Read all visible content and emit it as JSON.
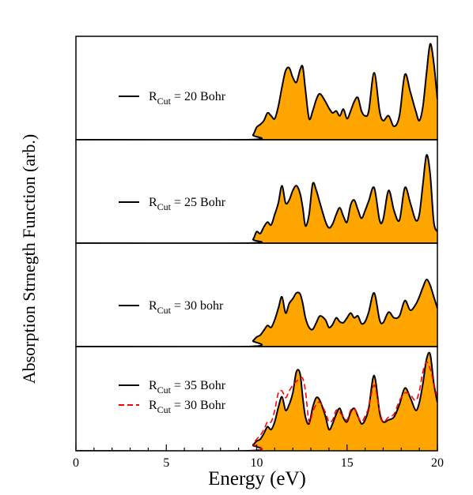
{
  "figure": {
    "ylabel": "Absorption Strnegth Function (arb.)",
    "xlabel": "Energy (eV)"
  },
  "colors": {
    "fill": "#FFA500",
    "curve": "#000000",
    "reference": "#FF0000",
    "frame": "#000000"
  },
  "chart_data": [
    {
      "type": "area",
      "panel": 1,
      "legend": [
        {
          "prefix": "R",
          "subscript": "Cut",
          "suffix": " = 20 Bohr",
          "style": "solid"
        }
      ],
      "xlim": [
        0,
        20
      ],
      "ylim": [
        0,
        1.08
      ],
      "series": [
        {
          "name": "RCut = 20 Bohr",
          "x": [
            0,
            9.5,
            9.8,
            10.0,
            10.2,
            10.4,
            10.6,
            10.8,
            11.0,
            11.2,
            11.4,
            11.6,
            11.8,
            12.0,
            12.2,
            12.4,
            12.55,
            12.7,
            12.9,
            13.1,
            13.3,
            13.5,
            13.8,
            14.0,
            14.2,
            14.4,
            14.6,
            14.8,
            15.0,
            15.2,
            15.4,
            15.6,
            15.8,
            16.0,
            16.2,
            16.5,
            16.8,
            17.0,
            17.3,
            17.6,
            17.9,
            18.2,
            18.5,
            18.8,
            19.0,
            19.2,
            19.4,
            19.6,
            19.8,
            20.0
          ],
          "y": [
            0,
            0,
            0.05,
            0.13,
            0.16,
            0.2,
            0.28,
            0.25,
            0.22,
            0.35,
            0.55,
            0.72,
            0.75,
            0.65,
            0.6,
            0.73,
            0.76,
            0.52,
            0.22,
            0.3,
            0.42,
            0.48,
            0.4,
            0.33,
            0.28,
            0.3,
            0.25,
            0.32,
            0.22,
            0.3,
            0.4,
            0.44,
            0.3,
            0.25,
            0.3,
            0.7,
            0.3,
            0.2,
            0.25,
            0.14,
            0.25,
            0.68,
            0.5,
            0.3,
            0.2,
            0.35,
            0.7,
            1.0,
            0.8,
            0.42
          ]
        }
      ]
    },
    {
      "type": "area",
      "panel": 2,
      "legend": [
        {
          "prefix": "R",
          "subscript": "Cut",
          "suffix": " = 25 Bohr",
          "style": "solid"
        }
      ],
      "xlim": [
        0,
        20
      ],
      "ylim": [
        0,
        1.08
      ],
      "series": [
        {
          "name": "RCut = 25 Bohr",
          "x": [
            0,
            9.5,
            9.8,
            10.0,
            10.2,
            10.4,
            10.6,
            10.8,
            11.0,
            11.2,
            11.4,
            11.6,
            11.8,
            12.0,
            12.2,
            12.4,
            12.55,
            12.7,
            12.9,
            13.1,
            13.3,
            13.5,
            13.8,
            14.0,
            14.2,
            14.4,
            14.6,
            14.8,
            15.0,
            15.2,
            15.4,
            15.6,
            15.8,
            16.0,
            16.2,
            16.5,
            16.8,
            17.0,
            17.3,
            17.6,
            17.9,
            18.2,
            18.5,
            18.8,
            19.0,
            19.2,
            19.4,
            19.6,
            19.8,
            20.0
          ],
          "y": [
            0,
            0,
            0.04,
            0.12,
            0.1,
            0.17,
            0.22,
            0.19,
            0.3,
            0.42,
            0.6,
            0.42,
            0.45,
            0.55,
            0.6,
            0.52,
            0.37,
            0.18,
            0.3,
            0.62,
            0.55,
            0.42,
            0.23,
            0.16,
            0.2,
            0.3,
            0.37,
            0.28,
            0.22,
            0.4,
            0.45,
            0.35,
            0.26,
            0.34,
            0.44,
            0.58,
            0.24,
            0.25,
            0.55,
            0.34,
            0.24,
            0.58,
            0.42,
            0.24,
            0.3,
            0.62,
            0.92,
            0.72,
            0.22,
            0.12
          ]
        }
      ]
    },
    {
      "type": "area",
      "panel": 3,
      "legend": [
        {
          "prefix": "R",
          "subscript": "Cut",
          "suffix": " = 30 bohr",
          "style": "solid"
        }
      ],
      "xlim": [
        0,
        20
      ],
      "ylim": [
        0,
        1.08
      ],
      "series": [
        {
          "name": "RCut = 30 bohr",
          "x": [
            0,
            9.5,
            9.8,
            10.0,
            10.2,
            10.4,
            10.6,
            10.8,
            11.0,
            11.2,
            11.4,
            11.6,
            11.8,
            12.0,
            12.2,
            12.4,
            12.55,
            12.7,
            12.9,
            13.1,
            13.3,
            13.5,
            13.8,
            14.0,
            14.2,
            14.4,
            14.6,
            14.8,
            15.0,
            15.2,
            15.4,
            15.6,
            15.8,
            16.0,
            16.2,
            16.5,
            16.8,
            17.0,
            17.3,
            17.6,
            17.9,
            18.2,
            18.5,
            18.8,
            19.0,
            19.2,
            19.4,
            19.6,
            19.8,
            20.0
          ],
          "y": [
            0,
            0,
            0.06,
            0.1,
            0.12,
            0.17,
            0.22,
            0.2,
            0.28,
            0.4,
            0.52,
            0.35,
            0.45,
            0.5,
            0.56,
            0.55,
            0.45,
            0.3,
            0.2,
            0.18,
            0.25,
            0.32,
            0.28,
            0.2,
            0.23,
            0.3,
            0.26,
            0.25,
            0.3,
            0.35,
            0.3,
            0.32,
            0.24,
            0.26,
            0.36,
            0.56,
            0.28,
            0.25,
            0.36,
            0.3,
            0.32,
            0.48,
            0.38,
            0.44,
            0.52,
            0.62,
            0.7,
            0.64,
            0.52,
            0.4
          ]
        }
      ]
    },
    {
      "type": "area",
      "panel": 4,
      "legend": [
        {
          "prefix": "R",
          "subscript": "Cut",
          "suffix": " = 35 Bohr",
          "style": "solid"
        },
        {
          "prefix": "R",
          "subscript": "Cut",
          "suffix": " = 30 Bohr",
          "style": "dashed"
        }
      ],
      "xlim": [
        0,
        20
      ],
      "ylim": [
        0,
        1.08
      ],
      "xticks": [
        0,
        5,
        10,
        15,
        20
      ],
      "xticklabels": [
        "0",
        "5",
        "10",
        "15",
        "20"
      ],
      "series": [
        {
          "name": "RCut = 35 Bohr",
          "x": [
            0,
            9.5,
            9.8,
            10.0,
            10.2,
            10.4,
            10.6,
            10.8,
            11.0,
            11.2,
            11.4,
            11.6,
            11.8,
            12.0,
            12.2,
            12.4,
            12.55,
            12.7,
            12.9,
            13.1,
            13.3,
            13.5,
            13.8,
            14.0,
            14.2,
            14.4,
            14.6,
            14.8,
            15.0,
            15.2,
            15.4,
            15.6,
            15.8,
            16.0,
            16.2,
            16.5,
            16.8,
            17.0,
            17.3,
            17.6,
            17.9,
            18.2,
            18.5,
            18.8,
            19.0,
            19.2,
            19.4,
            19.6,
            19.8,
            20.0
          ],
          "y": [
            0,
            0,
            0.06,
            0.1,
            0.12,
            0.18,
            0.25,
            0.22,
            0.3,
            0.45,
            0.56,
            0.42,
            0.48,
            0.6,
            0.82,
            0.8,
            0.55,
            0.35,
            0.28,
            0.45,
            0.55,
            0.52,
            0.36,
            0.22,
            0.28,
            0.38,
            0.44,
            0.34,
            0.3,
            0.4,
            0.44,
            0.36,
            0.28,
            0.32,
            0.44,
            0.78,
            0.4,
            0.3,
            0.32,
            0.35,
            0.48,
            0.65,
            0.55,
            0.42,
            0.5,
            0.7,
            0.95,
            1.0,
            0.7,
            0.5
          ]
        },
        {
          "name": "RCut = 30 Bohr",
          "x": [
            0,
            9.5,
            9.8,
            10.0,
            10.2,
            10.4,
            10.6,
            10.8,
            11.0,
            11.2,
            11.4,
            11.6,
            11.8,
            12.0,
            12.2,
            12.4,
            12.55,
            12.7,
            12.9,
            13.1,
            13.3,
            13.5,
            13.8,
            14.0,
            14.2,
            14.4,
            14.6,
            14.8,
            15.0,
            15.2,
            15.4,
            15.6,
            15.8,
            16.0,
            16.2,
            16.5,
            16.8,
            17.0,
            17.3,
            17.6,
            17.9,
            18.2,
            18.5,
            18.8,
            19.0,
            19.2,
            19.4,
            19.6,
            19.8,
            20.0
          ],
          "y": [
            0,
            0,
            0.07,
            0.12,
            0.16,
            0.22,
            0.3,
            0.3,
            0.42,
            0.6,
            0.62,
            0.55,
            0.62,
            0.68,
            0.72,
            0.75,
            0.75,
            0.62,
            0.3,
            0.4,
            0.48,
            0.5,
            0.4,
            0.3,
            0.32,
            0.42,
            0.4,
            0.35,
            0.32,
            0.42,
            0.44,
            0.36,
            0.3,
            0.36,
            0.45,
            0.68,
            0.42,
            0.3,
            0.35,
            0.38,
            0.52,
            0.6,
            0.58,
            0.52,
            0.62,
            0.82,
            0.92,
            0.85,
            0.7,
            0.55
          ]
        }
      ]
    }
  ]
}
